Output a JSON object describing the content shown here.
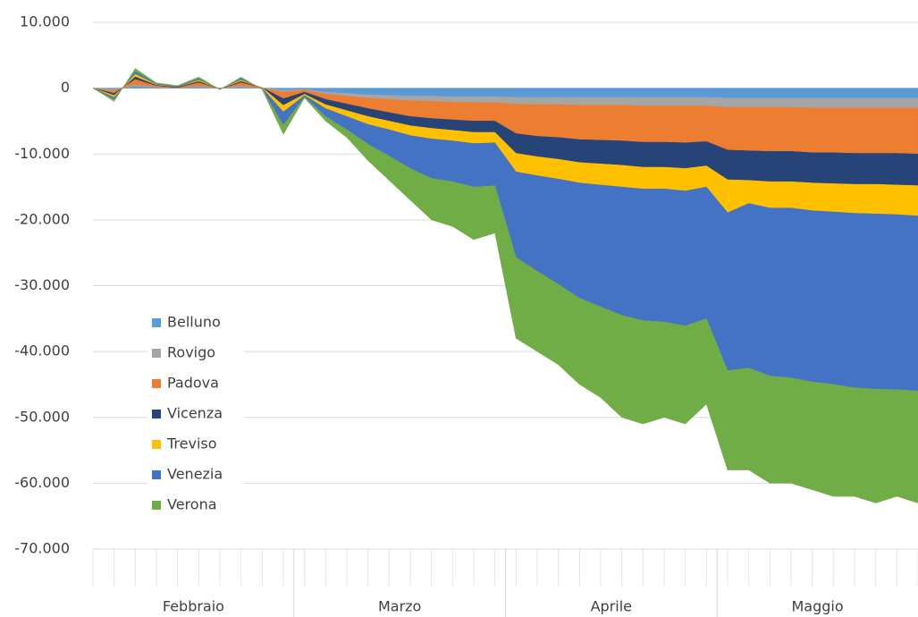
{
  "chart_data": {
    "type": "stacked_area",
    "categories": [
      null,
      null,
      null,
      null,
      null,
      null,
      null,
      null,
      null,
      null,
      null,
      null,
      null,
      null,
      null,
      null,
      null,
      null,
      null,
      null,
      null,
      null,
      null,
      null,
      null,
      null,
      null,
      null,
      null,
      null,
      null,
      null,
      null,
      null,
      null,
      null,
      null,
      null,
      null,
      null
    ],
    "x_groups": [
      {
        "label": "Febbraio",
        "size": 10
      },
      {
        "label": "Marzo",
        "size": 10
      },
      {
        "label": "Aprile",
        "size": 10
      },
      {
        "label": "Maggio",
        "size": 10
      }
    ],
    "ylim": [
      -70000,
      10000
    ],
    "yticks": [
      {
        "value": 10000,
        "label": "10.000"
      },
      0,
      {
        "value": -10000,
        "label": "-10.000"
      },
      {
        "value": -20000,
        "label": "-20.000"
      },
      {
        "value": -30000,
        "label": "-30.000"
      },
      {
        "value": -40000,
        "label": "-40.000"
      },
      {
        "value": -50000,
        "label": "-50.000"
      },
      {
        "value": -60000,
        "label": "-60.000"
      },
      {
        "value": -70000,
        "label": "-70.000"
      }
    ],
    "grid": true,
    "negative_tick_color": "#ff0000",
    "legend": "center-left",
    "series": [
      {
        "name": "Belluno",
        "color": "#5b9bd5",
        "values": [
          0,
          -200,
          300,
          100,
          0,
          200,
          0,
          200,
          0,
          -300,
          -200,
          -600,
          -800,
          -1000,
          -1100,
          -1200,
          -1200,
          -1300,
          -1300,
          -1300,
          -1400,
          -1400,
          -1400,
          -1400,
          -1400,
          -1400,
          -1400,
          -1400,
          -1400,
          -1400,
          -1500,
          -1500,
          -1500,
          -1500,
          -1500,
          -1500,
          -1500,
          -1500,
          -1500,
          -1500
        ]
      },
      {
        "name": "Rovigo",
        "color": "#a5a5a5",
        "values": [
          0,
          -200,
          300,
          100,
          0,
          200,
          0,
          200,
          0,
          -300,
          -100,
          -300,
          -400,
          -500,
          -600,
          -700,
          -800,
          -800,
          -900,
          -900,
          -1000,
          -1100,
          -1100,
          -1200,
          -1200,
          -1200,
          -1300,
          -1300,
          -1300,
          -1300,
          -1400,
          -1400,
          -1400,
          -1400,
          -1500,
          -1500,
          -1500,
          -1500,
          -1500,
          -1500
        ]
      },
      {
        "name": "Padova",
        "color": "#ed7d31",
        "values": [
          0,
          -400,
          800,
          200,
          100,
          500,
          -100,
          500,
          100,
          -1000,
          -300,
          -800,
          -1200,
          -1600,
          -2000,
          -2400,
          -2600,
          -2700,
          -2800,
          -2800,
          -4500,
          -4800,
          -5000,
          -5200,
          -5300,
          -5400,
          -5500,
          -5500,
          -5600,
          -5400,
          -6500,
          -6600,
          -6700,
          -6700,
          -6800,
          -6800,
          -6900,
          -6900,
          -6900,
          -7000
        ]
      },
      {
        "name": "Vicenza",
        "color": "#264478",
        "values": [
          0,
          -300,
          400,
          100,
          100,
          200,
          0,
          200,
          0,
          -1000,
          -300,
          -800,
          -1000,
          -1200,
          -1300,
          -1400,
          -1500,
          -1600,
          -1700,
          -1700,
          -3000,
          -3100,
          -3300,
          -3500,
          -3600,
          -3700,
          -3800,
          -3800,
          -3900,
          -3700,
          -4500,
          -4500,
          -4600,
          -4600,
          -4600,
          -4700,
          -4700,
          -4700,
          -4800,
          -4800
        ]
      },
      {
        "name": "Treviso",
        "color": "#ffc000",
        "values": [
          0,
          -300,
          400,
          100,
          0,
          200,
          0,
          200,
          -100,
          -1000,
          -200,
          -600,
          -900,
          -1200,
          -1300,
          -1500,
          -1600,
          -1600,
          -1700,
          -1600,
          -2800,
          -2900,
          -3000,
          -3100,
          -3200,
          -3300,
          -3300,
          -3300,
          -3400,
          -3200,
          -5000,
          -3500,
          -4000,
          -4000,
          -4200,
          -4300,
          -4400,
          -4500,
          -4500,
          -4600
        ]
      },
      {
        "name": "Venezia",
        "color": "#4472c4",
        "values": [
          0,
          -300,
          400,
          100,
          100,
          200,
          -100,
          200,
          -100,
          -2000,
          -200,
          -1200,
          -2000,
          -3000,
          -4000,
          -5000,
          -6000,
          -6200,
          -6600,
          -6500,
          -13000,
          -14500,
          -16000,
          -17500,
          -18500,
          -19500,
          -20000,
          -20200,
          -20500,
          -20000,
          -24000,
          -25000,
          -25500,
          -25800,
          -26000,
          -26200,
          -26500,
          -26600,
          -26600,
          -26600
        ]
      },
      {
        "name": "Verona",
        "color": "#70ad47",
        "values": [
          0,
          -300,
          400,
          100,
          100,
          200,
          0,
          200,
          -100,
          -1400,
          -200,
          -700,
          -1200,
          -2500,
          -3700,
          -4800,
          -6300,
          -6800,
          -8000,
          -7200,
          -12300,
          -12200,
          -12200,
          -13100,
          -13800,
          -15500,
          -15700,
          -14500,
          -14900,
          -13000,
          -15100,
          -15500,
          -16300,
          -16000,
          -16400,
          -17000,
          -16500,
          -17300,
          -16200,
          -17000
        ]
      }
    ]
  }
}
